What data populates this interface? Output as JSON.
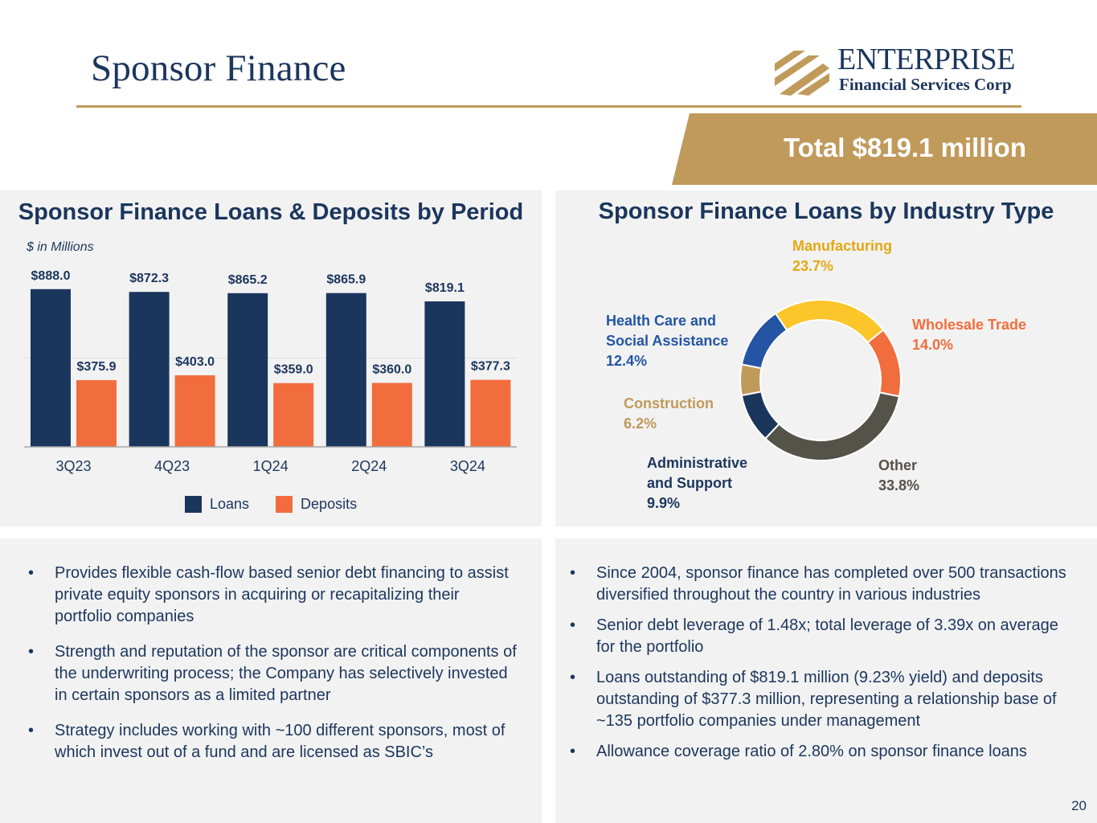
{
  "header": {
    "title": "Sponsor Finance",
    "logo_name": "ENTERPRISE",
    "logo_sub": "Financial Services Corp",
    "total_banner": "Total $819.1 million"
  },
  "colors": {
    "navy": "#1b365d",
    "orange": "#f26d3d",
    "gold": "#c09a5b",
    "panel": "#f2f2f2"
  },
  "left_panel": {
    "title": "Sponsor Finance Loans & Deposits by Period",
    "units": "$ in Millions",
    "legend": [
      {
        "name": "Loans",
        "color": "#1b365d"
      },
      {
        "name": "Deposits",
        "color": "#f26d3d"
      }
    ]
  },
  "right_panel": {
    "title": "Sponsor Finance Loans by Industry Type"
  },
  "chart_data": [
    {
      "type": "bar",
      "title": "Sponsor Finance Loans & Deposits by Period",
      "ylabel": "$ in Millions",
      "categories": [
        "3Q23",
        "4Q23",
        "1Q24",
        "2Q24",
        "3Q24"
      ],
      "series": [
        {
          "name": "Loans",
          "values": [
            888.0,
            872.3,
            865.2,
            865.9,
            819.1
          ],
          "labels": [
            "$888.0",
            "$872.3",
            "$865.2",
            "$865.9",
            "$819.1"
          ],
          "color": "#1b365d"
        },
        {
          "name": "Deposits",
          "values": [
            375.9,
            403.0,
            359.0,
            360.0,
            377.3
          ],
          "labels": [
            "$375.9",
            "$403.0",
            "$359.0",
            "$360.0",
            "$377.3"
          ],
          "color": "#f26d3d"
        }
      ],
      "ylim": [
        0,
        1000
      ],
      "grid": true,
      "legend": "bottom"
    },
    {
      "type": "pie",
      "subtype": "donut",
      "title": "Sponsor Finance Loans by Industry Type",
      "slices": [
        {
          "name": "Manufacturing",
          "value": 23.7,
          "label": "23.7%",
          "color": "#fcc52a"
        },
        {
          "name": "Wholesale Trade",
          "value": 14.0,
          "label": "14.0%",
          "color": "#f26d3d"
        },
        {
          "name": "Other",
          "value": 33.8,
          "label": "33.8%",
          "color": "#545349"
        },
        {
          "name": "Administrative and Support",
          "value": 9.9,
          "label": "9.9%",
          "color": "#1b365d"
        },
        {
          "name": "Construction",
          "value": 6.2,
          "label": "6.2%",
          "color": "#c09a5b"
        },
        {
          "name": "Health Care and Social Assistance",
          "value": 12.4,
          "label": "12.4%",
          "color": "#2455a4"
        }
      ]
    }
  ],
  "donut_labels": {
    "manufacturing": {
      "line1": "Manufacturing",
      "pct": "23.7%"
    },
    "wholesale": {
      "line1": "Wholesale Trade",
      "pct": "14.0%"
    },
    "other": {
      "line1": "Other",
      "pct": "33.8%"
    },
    "admin": {
      "line1": "Administrative",
      "line2": "and Support",
      "pct": "9.9%"
    },
    "construction": {
      "line1": "Construction",
      "pct": "6.2%"
    },
    "health": {
      "line1": "Health Care and",
      "line2": "Social Assistance",
      "pct": "12.4%"
    }
  },
  "bullets_left": [
    "Provides flexible cash-flow based senior debt financing to assist private equity sponsors in acquiring or recapitalizing their portfolio companies",
    "Strength and reputation of the sponsor are critical components of the underwriting process; the Company has selectively invested in certain sponsors as a limited partner",
    "Strategy includes working with ~100 different sponsors, most of which invest out of a fund and are licensed as SBIC’s"
  ],
  "bullets_right": [
    "Since 2004, sponsor finance has completed over 500 transactions diversified throughout the country in various industries",
    "Senior debt leverage of 1.48x; total leverage of 3.39x on average for the portfolio",
    "Loans outstanding of $819.1 million (9.23% yield) and deposits outstanding of $377.3 million, representing a relationship base of ~135 portfolio companies under management",
    "Allowance coverage ratio of 2.80% on sponsor finance loans"
  ],
  "page_number": "20"
}
